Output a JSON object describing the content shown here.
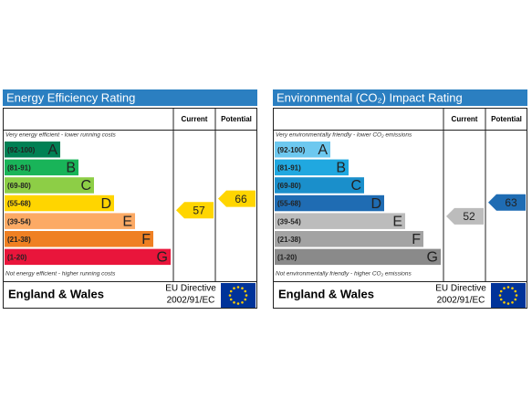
{
  "panels": [
    {
      "title": "Energy Efficiency Rating",
      "header": {
        "current": "Current",
        "potential": "Potential"
      },
      "top_note": "Very energy efficient - lower running costs",
      "bands": [
        {
          "range": "(92-100)",
          "letter": "A",
          "color": "#008054"
        },
        {
          "range": "(81-91)",
          "letter": "B",
          "color": "#19b459"
        },
        {
          "range": "(69-80)",
          "letter": "C",
          "color": "#8dce46"
        },
        {
          "range": "(55-68)",
          "letter": "D",
          "color": "#ffd500"
        },
        {
          "range": "(39-54)",
          "letter": "E",
          "color": "#fcaa65"
        },
        {
          "range": "(21-38)",
          "letter": "F",
          "color": "#ef8023"
        },
        {
          "range": "(1-20)",
          "letter": "G",
          "color": "#e9153b"
        }
      ],
      "bottom_note": "Not energy efficient - higher running costs",
      "current": 57,
      "potential": 66,
      "footer": {
        "region": "England & Wales",
        "directive": [
          "EU Directive",
          "2002/91/EC"
        ]
      }
    },
    {
      "title": "Environmental (CO₂) Impact Rating",
      "header": {
        "current": "Current",
        "potential": "Potential"
      },
      "top_note": "Very environmentally friendly - lower CO₂ emissions",
      "bands": [
        {
          "range": "(92-100)",
          "letter": "A",
          "color": "#6dc8ef"
        },
        {
          "range": "(81-91)",
          "letter": "B",
          "color": "#20a8e0"
        },
        {
          "range": "(69-80)",
          "letter": "C",
          "color": "#1a8fcb"
        },
        {
          "range": "(55-68)",
          "letter": "D",
          "color": "#1f6cb3"
        },
        {
          "range": "(39-54)",
          "letter": "E",
          "color": "#bcbcbc"
        },
        {
          "range": "(21-38)",
          "letter": "F",
          "color": "#a3a3a3"
        },
        {
          "range": "(1-20)",
          "letter": "G",
          "color": "#8a8a8a"
        }
      ],
      "bottom_note": "Not environmentally friendly - higher CO₂ emissions",
      "current": 52,
      "potential": 63,
      "footer": {
        "region": "England & Wales",
        "directive": [
          "EU Directive",
          "2002/91/EC"
        ]
      }
    }
  ]
}
